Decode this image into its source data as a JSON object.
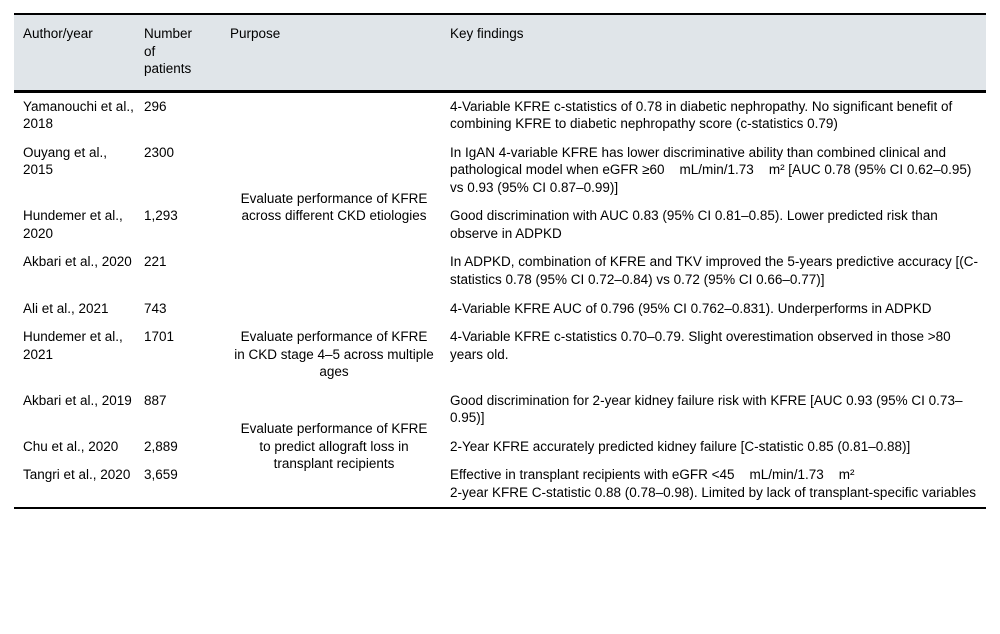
{
  "colors": {
    "header_bg": "#e0e5e9",
    "rule": "#000000"
  },
  "table": {
    "headers": {
      "author": "Author/year",
      "patients": "Number of patients",
      "purpose": "Purpose",
      "findings": "Key findings"
    },
    "purpose_groups": [
      {
        "text": "Evaluate performance of KFRE across different CKD etiologies",
        "rows_spanned": 5
      },
      {
        "text": "Evaluate performance of KFRE in CKD stage 4–5 across multiple ages",
        "rows_spanned": 1
      },
      {
        "text": "Evaluate performance of KFRE to predict allograft loss in transplant recipients",
        "rows_spanned": 3
      }
    ],
    "rows": [
      {
        "author": "Yamanouchi et al., 2018",
        "patients": "296",
        "findings": "4-Variable KFRE c-statistics of 0.78 in diabetic nephropathy. No significant benefit of combining KFRE to diabetic nephropathy score (c-statistics 0.79)"
      },
      {
        "author": "Ouyang et al., 2015",
        "patients": "2300",
        "findings": "In IgAN 4-variable KFRE has lower discriminative ability than combined clinical and pathological model when eGFR ≥60    mL/min/1.73    m² [AUC 0.78 (95% CI 0.62–0.95) vs 0.93 (95% CI 0.87–0.99)]"
      },
      {
        "author": "Hundemer et al., 2020",
        "patients": "1,293",
        "findings": "Good discrimination with AUC 0.83 (95% CI 0.81–0.85). Lower predicted risk than observe in ADPKD"
      },
      {
        "author": "Akbari et al., 2020",
        "patients": "221",
        "findings": "In ADPKD, combination of KFRE and TKV improved the 5-years predictive accuracy [(C-statistics 0.78 (95% CI 0.72–0.84) vs 0.72 (95% CI 0.66–0.77)]"
      },
      {
        "author": "Ali et al., 2021",
        "patients": "743",
        "findings": "4-Variable KFRE AUC of 0.796 (95% CI 0.762–0.831). Underperforms in ADPKD"
      },
      {
        "author": "Hundemer et al., 2021",
        "patients": "1701",
        "findings": "4-Variable KFRE c-statistics 0.70–0.79. Slight overestimation observed in those >80 years old."
      },
      {
        "author": "Akbari et al., 2019",
        "patients": "887",
        "findings": "Good discrimination for 2-year kidney failure risk with KFRE [AUC 0.93 (95% CI 0.73–0.95)]"
      },
      {
        "author": "Chu et al., 2020",
        "patients": "2,889",
        "findings": "2-Year KFRE accurately predicted kidney failure [C-statistic 0.85 (0.81–0.88)]"
      },
      {
        "author": "Tangri et al., 2020",
        "patients": "3,659",
        "findings": "Effective in transplant recipients with eGFR <45    mL/min/1.73    m²\n2-year KFRE C-statistic 0.88 (0.78–0.98). Limited by lack of transplant-specific variables"
      }
    ]
  }
}
